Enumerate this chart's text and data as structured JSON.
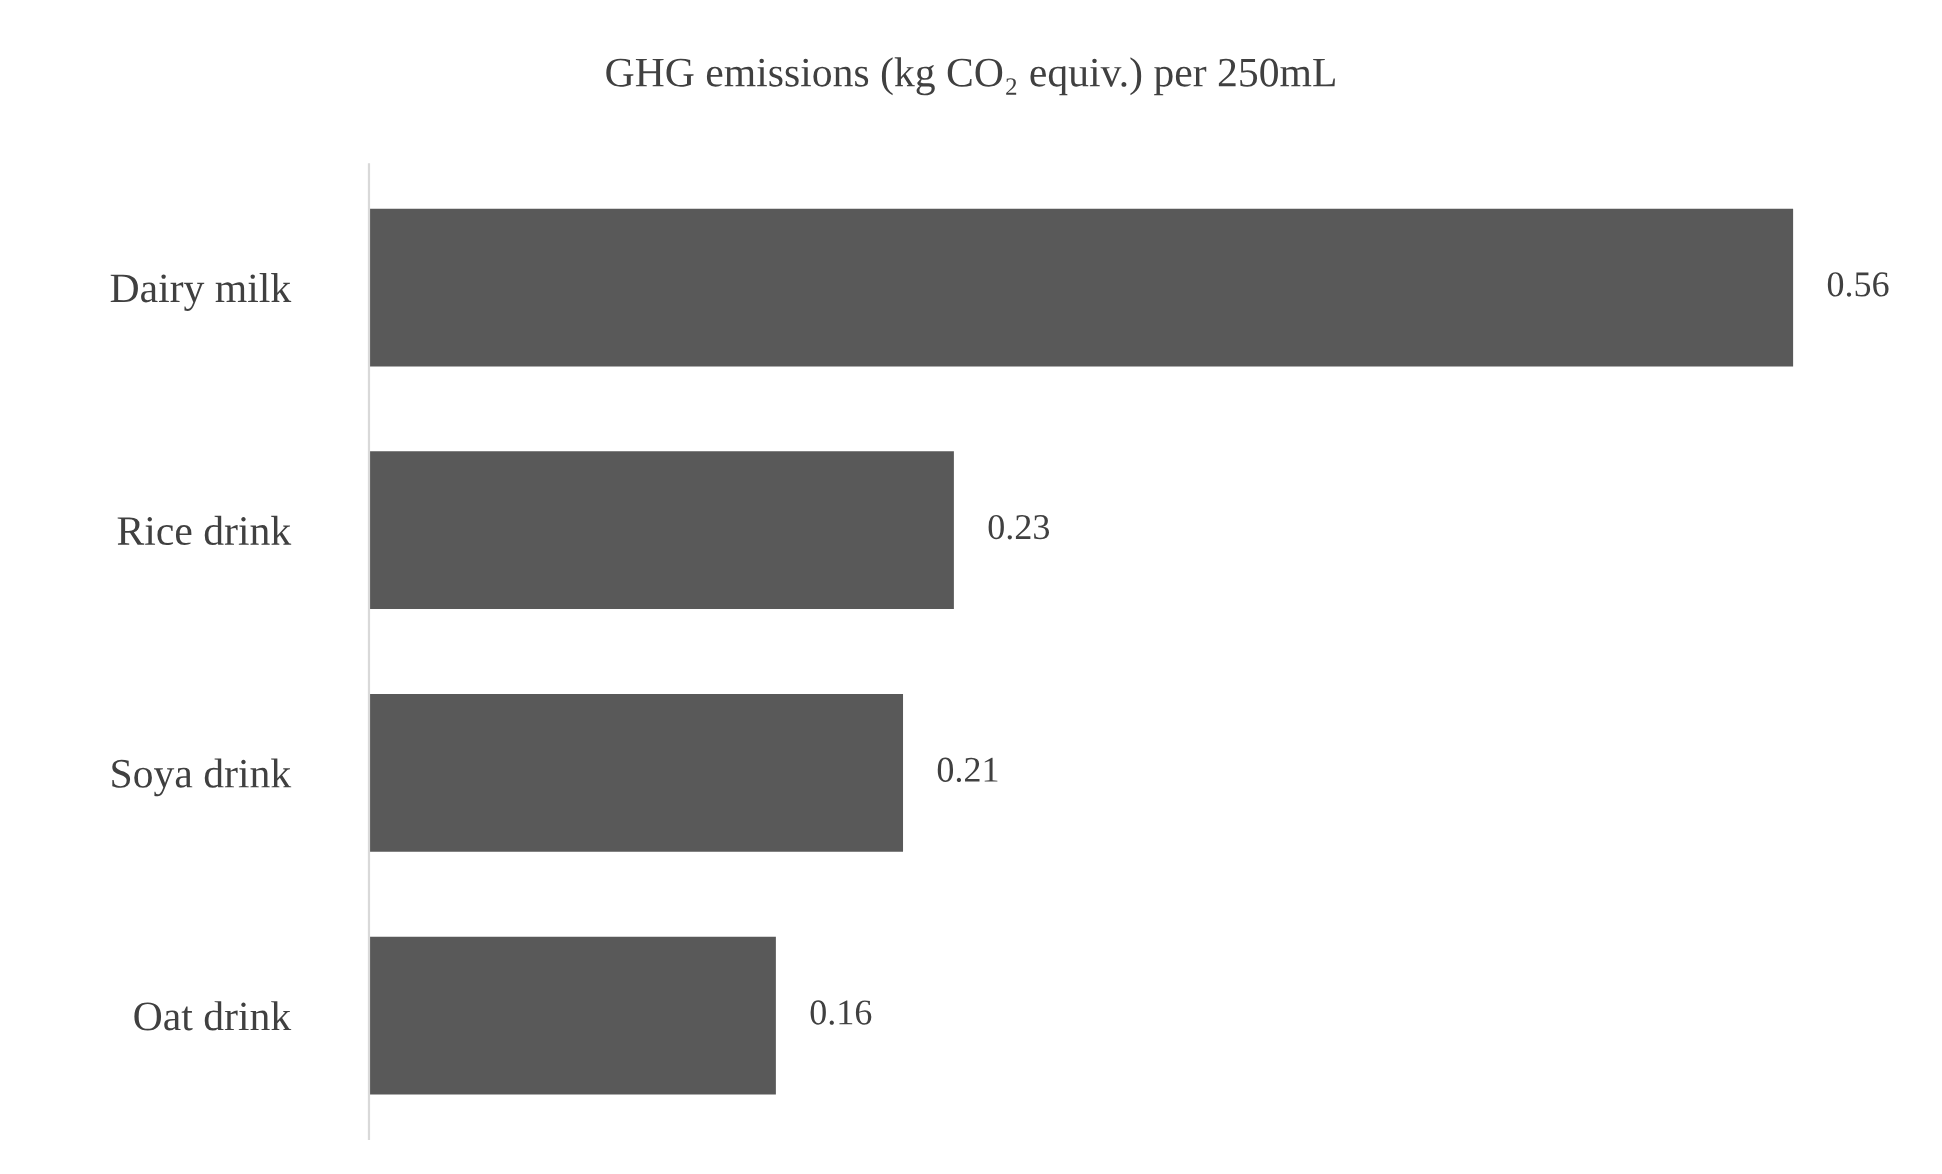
{
  "chart_data": {
    "type": "bar",
    "orientation": "horizontal",
    "title": "GHG emissions (kg CO₂ equiv.) per 250mL",
    "categories": [
      "Dairy milk",
      "Rice drink",
      "Soya drink",
      "Oat drink"
    ],
    "values": [
      0.56,
      0.23,
      0.21,
      0.16
    ],
    "color": "#595959",
    "data_labels": true,
    "tick_labels": "y",
    "grid": false
  }
}
